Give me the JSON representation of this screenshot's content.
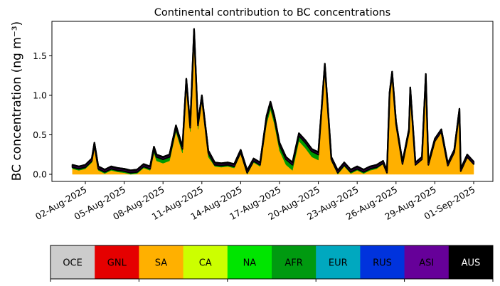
{
  "chart_data": {
    "type": "area",
    "title": "Continental contribution to BC concentrations",
    "ylabel": "BC concentration (ng m⁻³)",
    "xlabel": "",
    "x_unit": "days since 01-Aug-2025",
    "xlim": [
      -1.1,
      32.5
    ],
    "ylim": [
      -0.09,
      1.94
    ],
    "yticks": [
      0.0,
      0.5,
      1.0,
      1.5
    ],
    "ytick_labels": [
      "0.0",
      "0.5",
      "1.0",
      "1.5"
    ],
    "xticks": [
      1,
      4,
      7,
      10,
      13,
      16,
      19,
      22,
      25,
      28,
      31
    ],
    "xtick_labels": [
      "02-Aug-2025",
      "05-Aug-2025",
      "08-Aug-2025",
      "11-Aug-2025",
      "14-Aug-2025",
      "17-Aug-2025",
      "20-Aug-2025",
      "23-Aug-2025",
      "26-Aug-2025",
      "29-Aug-2025",
      "01-Sep-2025"
    ],
    "x": [
      0,
      0.5,
      1,
      1.5,
      1.7,
      2,
      2.5,
      3,
      3.5,
      4,
      4.5,
      5,
      5.5,
      6,
      6.3,
      6.5,
      7,
      7.5,
      8,
      8.5,
      8.8,
      9.1,
      9.4,
      9.7,
      10,
      10.5,
      11,
      11.5,
      12,
      12.5,
      13,
      13.5,
      14,
      14.5,
      15,
      15.3,
      15.6,
      16,
      16.5,
      17,
      17.5,
      18,
      18.5,
      19,
      19.5,
      20,
      20.5,
      21,
      21.5,
      22,
      22.5,
      23,
      23.5,
      24,
      24.3,
      24.5,
      24.7,
      25,
      25.5,
      26,
      26.1,
      26.5,
      27,
      27.3,
      27.5,
      28,
      28.5,
      29,
      29.5,
      29.9,
      30,
      30.5,
      31
    ],
    "series": [
      {
        "name": "SA",
        "color": "#ffb000",
        "values": [
          0.07,
          0.05,
          0.07,
          0.15,
          0.35,
          0.05,
          0.01,
          0.05,
          0.03,
          0.02,
          0,
          0.01,
          0.08,
          0.05,
          0.27,
          0.17,
          0.14,
          0.17,
          0.54,
          0.27,
          1.13,
          0.54,
          1.76,
          0.57,
          0.92,
          0.22,
          0.1,
          0.09,
          0.1,
          0.08,
          0.26,
          0,
          0.15,
          0.1,
          0.64,
          0.82,
          0.64,
          0.3,
          0.12,
          0.05,
          0.42,
          0.33,
          0.22,
          0.18,
          1.35,
          0.17,
          0,
          0.1,
          0.01,
          0.05,
          0.01,
          0.05,
          0.07,
          0.13,
          0.01,
          0.99,
          1.26,
          0.63,
          0.12,
          0.53,
          1.06,
          0.11,
          0.18,
          1.23,
          0.11,
          0.41,
          0.53,
          0.1,
          0.27,
          0.79,
          0.03,
          0.21,
          0.12
        ]
      },
      {
        "name": "AFR",
        "color": "#009900",
        "values": [
          0.02,
          0.02,
          0.02,
          0.02,
          0.02,
          0.02,
          0.02,
          0.02,
          0.02,
          0.02,
          0.02,
          0.02,
          0.02,
          0.02,
          0.05,
          0.05,
          0.05,
          0.05,
          0.05,
          0.05,
          0.05,
          0.05,
          0.05,
          0.05,
          0.05,
          0.05,
          0.02,
          0.02,
          0.02,
          0.02,
          0.02,
          0.02,
          0.02,
          0.02,
          0.07,
          0.07,
          0.07,
          0.07,
          0.07,
          0.07,
          0.07,
          0.07,
          0.07,
          0.07,
          0.02,
          0.02,
          0.02,
          0.02,
          0.02,
          0.02,
          0.02,
          0.02,
          0.02,
          0.01,
          0.01,
          0.01,
          0.01,
          0.01,
          0.01,
          0.01,
          0.01,
          0.01,
          0.01,
          0.01,
          0.01,
          0.01,
          0.01,
          0.01,
          0.01,
          0.01,
          0.01,
          0.01,
          0.01
        ]
      },
      {
        "name": "AUS",
        "color": "#000000",
        "values": [
          0.03,
          0.03,
          0.03,
          0.03,
          0.03,
          0.03,
          0.03,
          0.03,
          0.03,
          0.03,
          0.03,
          0.03,
          0.03,
          0.03,
          0.03,
          0.03,
          0.03,
          0.03,
          0.03,
          0.03,
          0.03,
          0.03,
          0.03,
          0.03,
          0.03,
          0.03,
          0.03,
          0.03,
          0.03,
          0.03,
          0.03,
          0.03,
          0.03,
          0.03,
          0.03,
          0.03,
          0.03,
          0.03,
          0.03,
          0.03,
          0.03,
          0.03,
          0.03,
          0.03,
          0.03,
          0.03,
          0.03,
          0.03,
          0.03,
          0.03,
          0.03,
          0.03,
          0.03,
          0.03,
          0.03,
          0.03,
          0.03,
          0.03,
          0.03,
          0.03,
          0.03,
          0.03,
          0.03,
          0.03,
          0.03,
          0.03,
          0.03,
          0.03,
          0.03,
          0.03,
          0.03,
          0.03,
          0.03
        ]
      }
    ],
    "legend": {
      "placement": "bottom-colorbar",
      "entries": [
        {
          "label": "OCE",
          "color": "#cccccc",
          "text_color": "#000000"
        },
        {
          "label": "GNL",
          "color": "#e50000",
          "text_color": "#000000"
        },
        {
          "label": "SA",
          "color": "#ffb000",
          "text_color": "#000000"
        },
        {
          "label": "CA",
          "color": "#ccff00",
          "text_color": "#000000"
        },
        {
          "label": "NA",
          "color": "#00e500",
          "text_color": "#000000"
        },
        {
          "label": "AFR",
          "color": "#009a10",
          "text_color": "#000000"
        },
        {
          "label": "EUR",
          "color": "#00a8bf",
          "text_color": "#000000"
        },
        {
          "label": "RUS",
          "color": "#0033dd",
          "text_color": "#000000"
        },
        {
          "label": "ASI",
          "color": "#660099",
          "text_color": "#000000"
        },
        {
          "label": "AUS",
          "color": "#000000",
          "text_color": "#ffffff"
        }
      ]
    },
    "grid": false
  }
}
